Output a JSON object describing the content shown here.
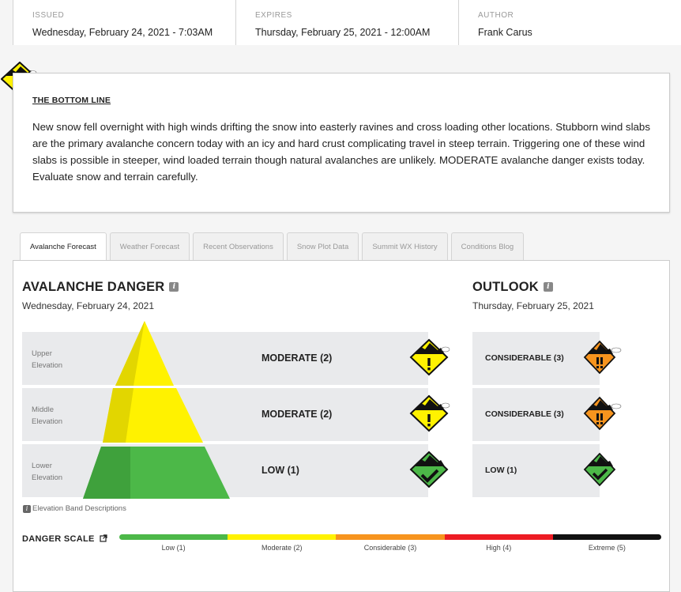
{
  "meta": {
    "issued_label": "ISSUED",
    "issued_value": "Wednesday, February 24, 2021 - 7:03AM",
    "expires_label": "EXPIRES",
    "expires_value": "Thursday, February 25, 2021 - 12:00AM",
    "author_label": "AUTHOR",
    "author_value": "Frank Carus"
  },
  "bottom_line": {
    "title": "THE BOTTOM LINE",
    "text": "New snow fell overnight with high winds drifting the snow into easterly ravines and cross loading other locations. Stubborn wind slabs are the primary avalanche concern today with an icy and hard crust complicating travel in steep terrain. Triggering one of these wind slabs is possible in steeper, wind loaded terrain though natural avalanches are unlikely. MODERATE avalanche danger exists today. Evaluate snow and terrain carefully.",
    "icon": "moderate-danger-icon"
  },
  "tabs": [
    {
      "label": "Avalanche Forecast",
      "active": true
    },
    {
      "label": "Weather Forecast",
      "active": false
    },
    {
      "label": "Recent Observations",
      "active": false
    },
    {
      "label": "Snow Plot Data",
      "active": false
    },
    {
      "label": "Summit WX History",
      "active": false
    },
    {
      "label": "Conditions Blog",
      "active": false
    }
  ],
  "danger": {
    "title": "AVALANCHE DANGER",
    "date": "Wednesday, February 24, 2021",
    "bands": [
      {
        "label_line1": "Upper",
        "label_line2": "Elevation",
        "rating": "MODERATE (2)",
        "level": 2
      },
      {
        "label_line1": "Middle",
        "label_line2": "Elevation",
        "rating": "MODERATE (2)",
        "level": 2
      },
      {
        "label_line1": "Lower",
        "label_line2": "Elevation",
        "rating": "LOW (1)",
        "level": 1
      }
    ],
    "elevation_desc": "Elevation Band Descriptions"
  },
  "outlook": {
    "title": "OUTLOOK",
    "date": "Thursday, February 25, 2021",
    "bands": [
      {
        "rating": "CONSIDERABLE (3)",
        "level": 3
      },
      {
        "rating": "CONSIDERABLE (3)",
        "level": 3
      },
      {
        "rating": "LOW (1)",
        "level": 1
      }
    ]
  },
  "scale": {
    "title": "DANGER SCALE",
    "levels": [
      {
        "label": "Low (1)",
        "color": "#4cb848"
      },
      {
        "label": "Moderate (2)",
        "color": "#fff200"
      },
      {
        "label": "Considerable (3)",
        "color": "#f7941e"
      },
      {
        "label": "High (4)",
        "color": "#ed1c24"
      },
      {
        "label": "Extreme (5)",
        "color": "#111111"
      }
    ]
  }
}
